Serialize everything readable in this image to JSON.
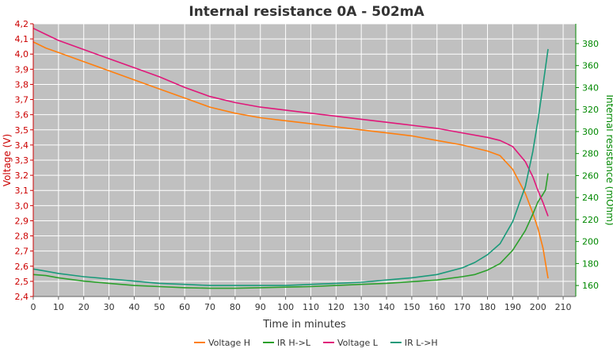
{
  "chart_data": {
    "type": "line",
    "title": "Internal resistance  0A - 502mA",
    "xlabel": "Time in minutes",
    "ylabel": "Voltage (V)",
    "y2label": "Internal resistance (mOhm)",
    "xlim": [
      0,
      215
    ],
    "ylim": [
      2.4,
      4.2
    ],
    "y2lim": [
      150,
      398
    ],
    "x_ticks": [
      0,
      10,
      20,
      30,
      40,
      50,
      60,
      70,
      80,
      90,
      100,
      110,
      120,
      130,
      140,
      150,
      160,
      170,
      180,
      190,
      200,
      210
    ],
    "y_ticks": [
      "2,4",
      "2,5",
      "2,6",
      "2,7",
      "2,8",
      "2,9",
      "3,0",
      "3,1",
      "3,2",
      "3,3",
      "3,4",
      "3,5",
      "3,6",
      "3,7",
      "3,8",
      "3,9",
      "4,0",
      "4,1",
      "4,2"
    ],
    "y2_ticks": [
      160,
      180,
      200,
      220,
      240,
      260,
      280,
      300,
      320,
      340,
      360,
      380
    ],
    "grid": true,
    "legend_position": "bottom",
    "colors": {
      "plot_bg": "#c0c0c0",
      "grid": "#ffffff",
      "left_axis": "#cc0000",
      "right_axis": "#008800",
      "voltage_h": "#ff7f0e",
      "ir_h_l": "#2ca02c",
      "voltage_l": "#e0187a",
      "ir_l_h": "#1a9a7a"
    },
    "series": [
      {
        "name": "Voltage H",
        "axis": "left",
        "color": "#ff7f0e",
        "x": [
          0,
          5,
          10,
          20,
          30,
          40,
          50,
          60,
          70,
          80,
          90,
          100,
          110,
          120,
          130,
          140,
          150,
          160,
          170,
          180,
          185,
          190,
          195,
          198,
          200,
          202,
          204
        ],
        "y": [
          4.08,
          4.04,
          4.01,
          3.95,
          3.89,
          3.83,
          3.77,
          3.71,
          3.65,
          3.61,
          3.58,
          3.56,
          3.54,
          3.52,
          3.5,
          3.48,
          3.46,
          3.43,
          3.4,
          3.36,
          3.33,
          3.24,
          3.08,
          2.95,
          2.85,
          2.72,
          2.52
        ]
      },
      {
        "name": "IR H->L",
        "axis": "right",
        "color": "#2ca02c",
        "x": [
          0,
          5,
          10,
          20,
          30,
          40,
          50,
          60,
          70,
          80,
          90,
          100,
          110,
          120,
          130,
          140,
          150,
          160,
          170,
          175,
          180,
          185,
          190,
          195,
          198,
          200,
          202,
          203,
          204
        ],
        "y": [
          170,
          169,
          167,
          164,
          162,
          160,
          159,
          158,
          157.5,
          157.5,
          158,
          158.5,
          159,
          160,
          161,
          162,
          163.5,
          165,
          168,
          170,
          174,
          180,
          192,
          210,
          225,
          236,
          243,
          247,
          262
        ]
      },
      {
        "name": "Voltage L",
        "axis": "left",
        "color": "#e0187a",
        "x": [
          0,
          5,
          10,
          20,
          30,
          40,
          50,
          60,
          70,
          80,
          90,
          100,
          110,
          120,
          130,
          140,
          150,
          160,
          170,
          180,
          185,
          190,
          195,
          198,
          200,
          202,
          204
        ],
        "y": [
          4.17,
          4.13,
          4.09,
          4.03,
          3.97,
          3.91,
          3.85,
          3.78,
          3.72,
          3.68,
          3.65,
          3.63,
          3.61,
          3.59,
          3.57,
          3.55,
          3.53,
          3.51,
          3.48,
          3.45,
          3.43,
          3.39,
          3.29,
          3.19,
          3.1,
          3.02,
          2.93
        ]
      },
      {
        "name": "IR L->H",
        "axis": "right",
        "color": "#1a9a7a",
        "x": [
          0,
          5,
          10,
          20,
          30,
          40,
          50,
          60,
          70,
          80,
          90,
          100,
          110,
          120,
          130,
          140,
          150,
          160,
          170,
          175,
          180,
          185,
          190,
          195,
          198,
          200,
          202,
          204
        ],
        "y": [
          175,
          173,
          171,
          168,
          166,
          164,
          162,
          161,
          160,
          160,
          160,
          160,
          161,
          162,
          163,
          165,
          167,
          170,
          176,
          181,
          188,
          198,
          218,
          250,
          282,
          310,
          342,
          375
        ]
      }
    ]
  }
}
